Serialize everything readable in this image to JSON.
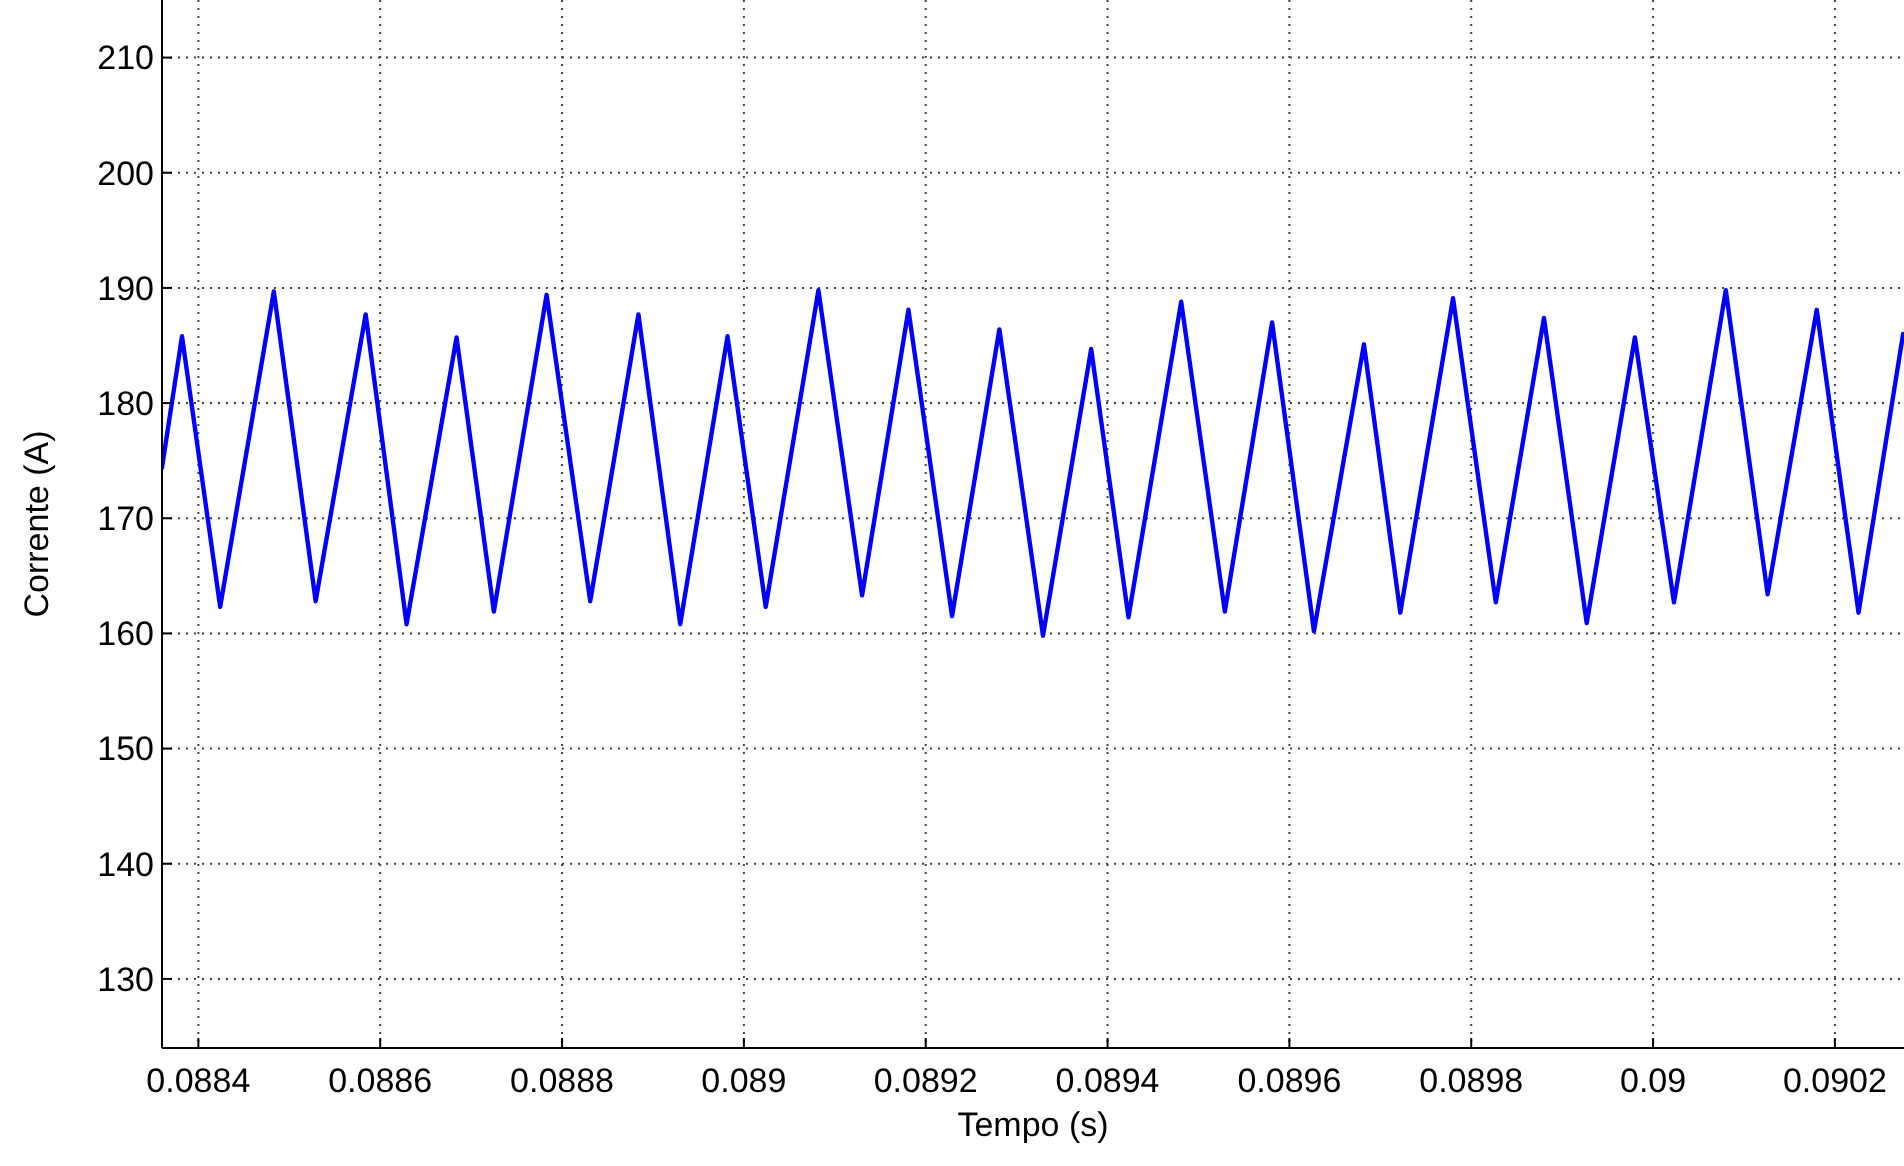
{
  "chart_data": {
    "type": "line",
    "xlabel": "Tempo (s)",
    "ylabel": "Corrente (A)",
    "x": [
      0.08836,
      0.088382,
      0.088424,
      0.088483,
      0.088529,
      0.088584,
      0.088629,
      0.088684,
      0.088725,
      0.088783,
      0.088831,
      0.088884,
      0.08893,
      0.088982,
      0.089024,
      0.089082,
      0.08913,
      0.089181,
      0.089229,
      0.089281,
      0.089329,
      0.089382,
      0.089423,
      0.089481,
      0.089529,
      0.089581,
      0.089627,
      0.089682,
      0.089722,
      0.08978,
      0.089827,
      0.08988,
      0.089927,
      0.08998,
      0.090023,
      0.09008,
      0.090126,
      0.09018,
      0.090226,
      0.090275
    ],
    "series": [
      {
        "color": "#0000ff",
        "values": [
          174.4,
          185.8,
          162.3,
          189.7,
          162.8,
          187.7,
          160.8,
          185.7,
          161.9,
          189.4,
          162.8,
          187.7,
          160.8,
          185.8,
          162.3,
          189.8,
          163.3,
          188.1,
          161.5,
          186.4,
          159.8,
          184.7,
          161.4,
          188.8,
          161.9,
          187,
          160.2,
          185.1,
          161.8,
          189.1,
          162.7,
          187.4,
          160.9,
          185.7,
          162.7,
          189.8,
          163.4,
          188.1,
          161.8,
          186
        ]
      }
    ],
    "xlim": [
      0.08836,
      0.090276
    ],
    "ylim": [
      124,
      215
    ],
    "xticks": [
      0.0884,
      0.0886,
      0.0888,
      0.089,
      0.0892,
      0.0894,
      0.0896,
      0.0898,
      0.09,
      0.0902
    ],
    "yticks": [
      130,
      140,
      150,
      160,
      170,
      180,
      190,
      200,
      210
    ],
    "grid": true,
    "marker": "none",
    "line_style": "solid"
  }
}
